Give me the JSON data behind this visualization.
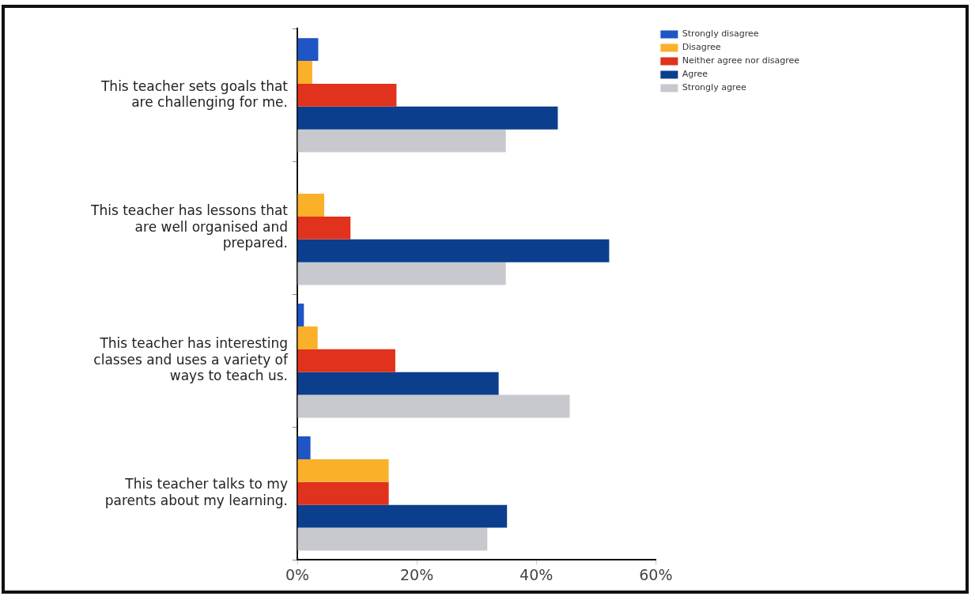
{
  "chart_data": {
    "type": "bar",
    "orientation": "horizontal",
    "categories": [
      "This teacher sets goals that are challenging for me.",
      "This teacher has lessons that are well organised and prepared.",
      "This teacher has interesting classes and uses a variety of ways to teach us.",
      "This teacher talks to my parents about my learning."
    ],
    "series": [
      {
        "name": "Strongly disagree",
        "color": "#1f55c4",
        "values": [
          3.5,
          0,
          1.1,
          2.2
        ]
      },
      {
        "name": "Disagree",
        "color": "#fbb02a",
        "values": [
          2.5,
          4.5,
          3.4,
          15.3
        ]
      },
      {
        "name": "Neither agree nor disagree",
        "color": "#e0321c",
        "values": [
          16.6,
          8.9,
          16.4,
          15.3
        ]
      },
      {
        "name": "Agree",
        "color": "#0b3f8e",
        "values": [
          43.6,
          52.2,
          33.7,
          35.1
        ]
      },
      {
        "name": "Strongly agree",
        "color": "#c8c9ce",
        "values": [
          34.9,
          34.9,
          45.6,
          31.8
        ]
      }
    ],
    "xlim": [
      0,
      60
    ],
    "xticks": [
      {
        "value": 0,
        "label": "0%"
      },
      {
        "value": 20,
        "label": "20%"
      },
      {
        "value": 40,
        "label": "40%"
      },
      {
        "value": 60,
        "label": "60%"
      }
    ],
    "grid": false,
    "legend": "top right"
  }
}
